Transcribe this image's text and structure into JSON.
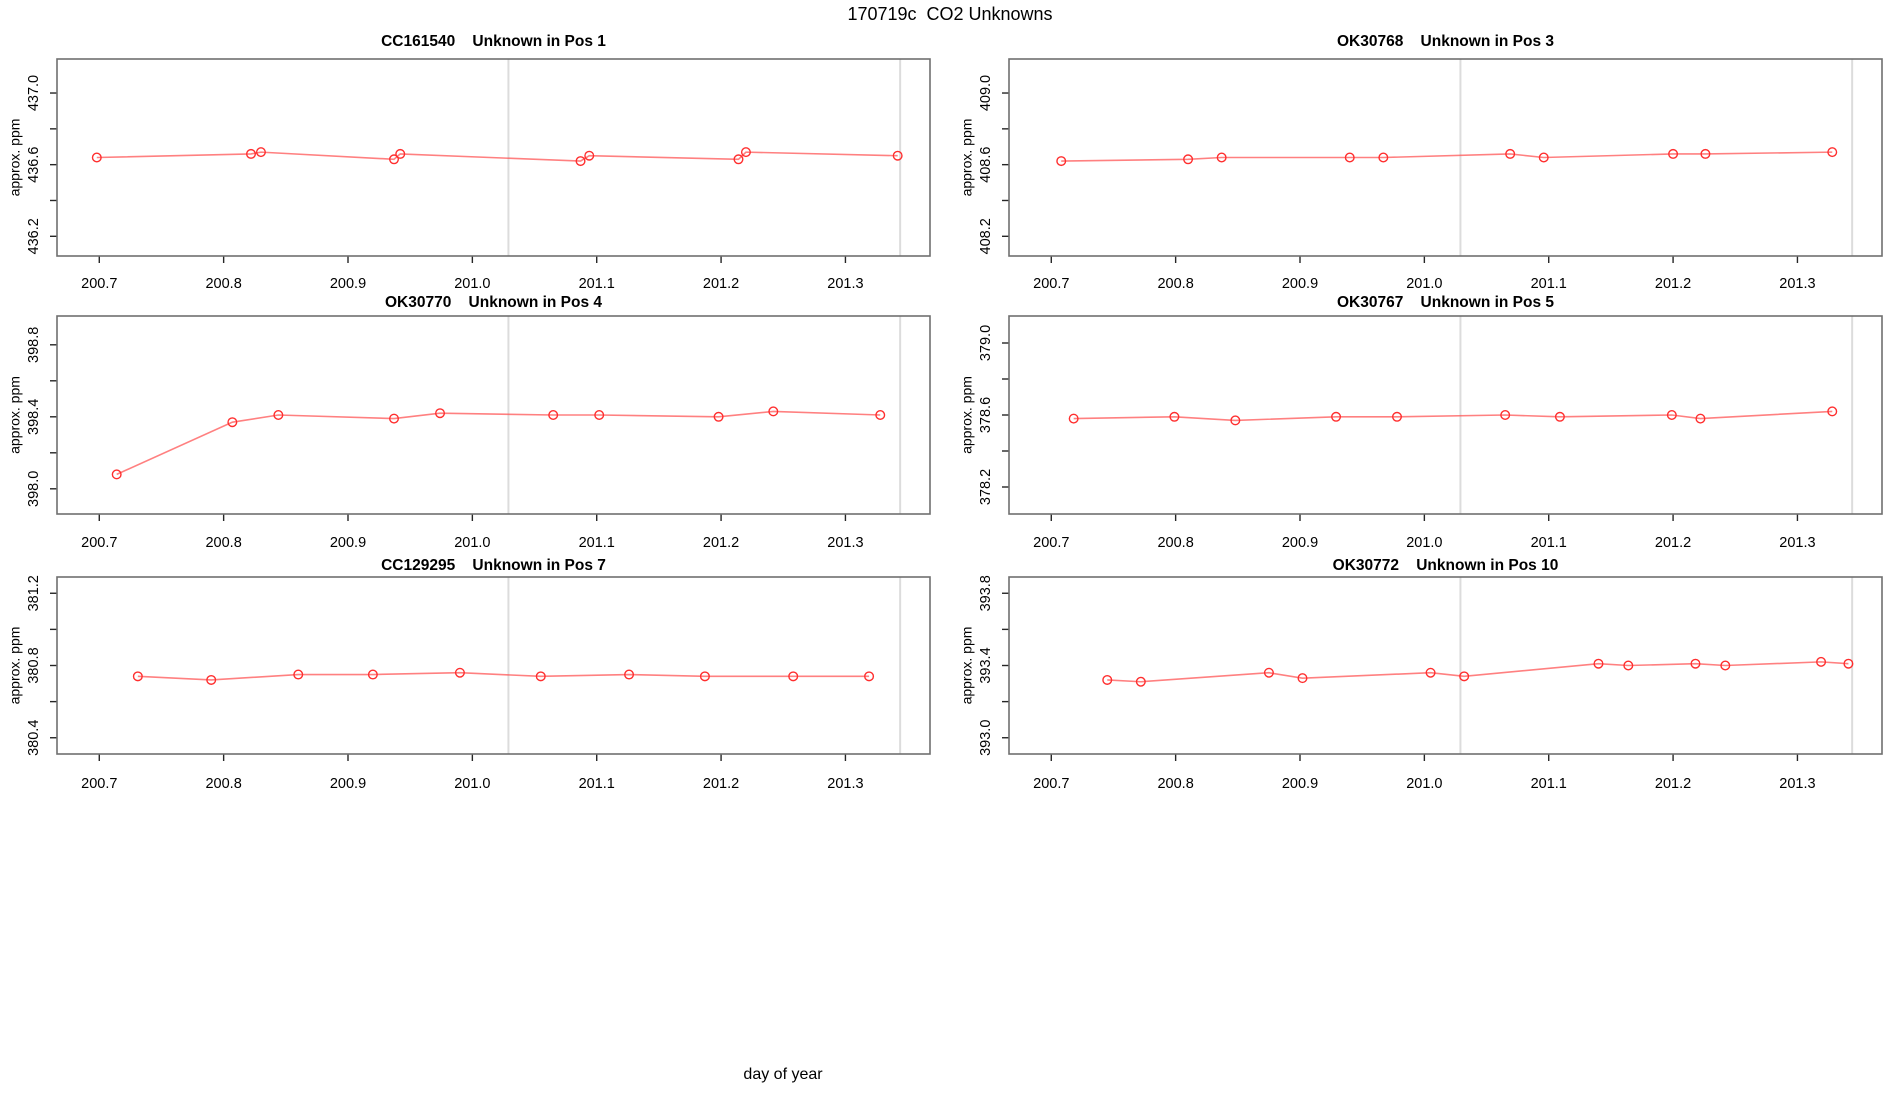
{
  "figure": {
    "title": "170719c  CO2 Unknowns",
    "xlabel": "day of year",
    "background": "#ffffff",
    "series_color": "#ff2e2e",
    "series_line_color": "#ff5555",
    "vline_color": "#dcdcdc",
    "box_color": "#6f6f6f",
    "tick_color": "#262626",
    "text_color": "#000000"
  },
  "axes_common": {
    "xlim": [
      200.666,
      201.368
    ],
    "xtick_labels": [
      "200.7",
      "200.8",
      "200.9",
      "201.0",
      "201.1",
      "201.2",
      "201.3"
    ],
    "vlines": [
      201.029,
      201.344
    ],
    "grid": false,
    "legend": null
  },
  "chart_data": [
    {
      "type": "line",
      "title": "CC161540    Unknown in Pos 1",
      "ylabel": "approx. ppm",
      "x": [
        200.698,
        200.822,
        200.83,
        200.937,
        200.942,
        201.087,
        201.094,
        201.214,
        201.22,
        201.342
      ],
      "y": [
        436.64,
        436.66,
        436.67,
        436.63,
        436.66,
        436.62,
        436.65,
        436.63,
        436.67,
        436.65
      ],
      "ylim": [
        436.09,
        437.19
      ],
      "yticks": [
        436.2,
        436.4,
        436.6,
        436.8,
        437.0
      ],
      "ytick_labels": [
        "436.2",
        "436.6",
        "437.0"
      ]
    },
    {
      "type": "line",
      "title": "OK30768    Unknown in Pos 3",
      "ylabel": "approx. ppm",
      "x": [
        200.708,
        200.81,
        200.837,
        200.94,
        200.967,
        201.069,
        201.096,
        201.2,
        201.226,
        201.328
      ],
      "y": [
        408.62,
        408.63,
        408.64,
        408.64,
        408.64,
        408.66,
        408.64,
        408.66,
        408.66,
        408.67
      ],
      "ylim": [
        408.09,
        409.19
      ],
      "yticks": [
        408.2,
        408.4,
        408.6,
        408.8,
        409.0
      ],
      "ytick_labels": [
        "408.2",
        "408.6",
        "409.0"
      ]
    },
    {
      "type": "line",
      "title": "OK30770    Unknown in Pos 4",
      "ylabel": "approx. ppm",
      "x": [
        200.714,
        200.807,
        200.844,
        200.937,
        200.974,
        201.065,
        201.102,
        201.198,
        201.242,
        201.328
      ],
      "y": [
        398.08,
        398.37,
        398.41,
        398.39,
        398.42,
        398.41,
        398.41,
        398.4,
        398.43,
        398.41
      ],
      "ylim": [
        397.86,
        398.96
      ],
      "yticks": [
        398.0,
        398.2,
        398.4,
        398.6,
        398.8
      ],
      "ytick_labels": [
        "398.0",
        "398.4",
        "398.8"
      ]
    },
    {
      "type": "line",
      "title": "OK30767    Unknown in Pos 5",
      "ylabel": "approx. ppm",
      "x": [
        200.718,
        200.799,
        200.848,
        200.929,
        200.978,
        201.065,
        201.109,
        201.199,
        201.222,
        201.328
      ],
      "y": [
        378.58,
        378.59,
        378.57,
        378.59,
        378.59,
        378.6,
        378.59,
        378.6,
        378.58,
        378.62
      ],
      "ylim": [
        378.05,
        379.15
      ],
      "yticks": [
        378.2,
        378.4,
        378.6,
        378.8,
        379.0
      ],
      "ytick_labels": [
        "378.2",
        "378.6",
        "379.0"
      ]
    },
    {
      "type": "line",
      "title": "CC129295    Unknown in Pos 7",
      "ylabel": "approx. ppm",
      "x": [
        200.731,
        200.79,
        200.86,
        200.92,
        200.99,
        201.055,
        201.126,
        201.187,
        201.258,
        201.319
      ],
      "y": [
        380.74,
        380.72,
        380.75,
        380.75,
        380.76,
        380.74,
        380.75,
        380.74,
        380.74,
        380.74
      ],
      "ylim": [
        380.31,
        381.29
      ],
      "yticks": [
        380.4,
        380.6,
        380.8,
        381.0,
        381.2
      ],
      "ytick_labels": [
        "380.4",
        "380.8",
        "381.2"
      ]
    },
    {
      "type": "line",
      "title": "OK30772    Unknown in Pos 10",
      "ylabel": "approx. ppm",
      "x": [
        200.745,
        200.772,
        200.875,
        200.902,
        201.005,
        201.032,
        201.14,
        201.164,
        201.218,
        201.242,
        201.319,
        201.341
      ],
      "y": [
        393.32,
        393.31,
        393.36,
        393.33,
        393.36,
        393.34,
        393.41,
        393.4,
        393.41,
        393.4,
        393.42,
        393.41
      ],
      "ylim": [
        392.91,
        393.89
      ],
      "yticks": [
        393.0,
        393.2,
        393.4,
        393.6,
        393.8
      ],
      "ytick_labels": [
        "393.0",
        "393.4",
        "393.8"
      ]
    }
  ]
}
